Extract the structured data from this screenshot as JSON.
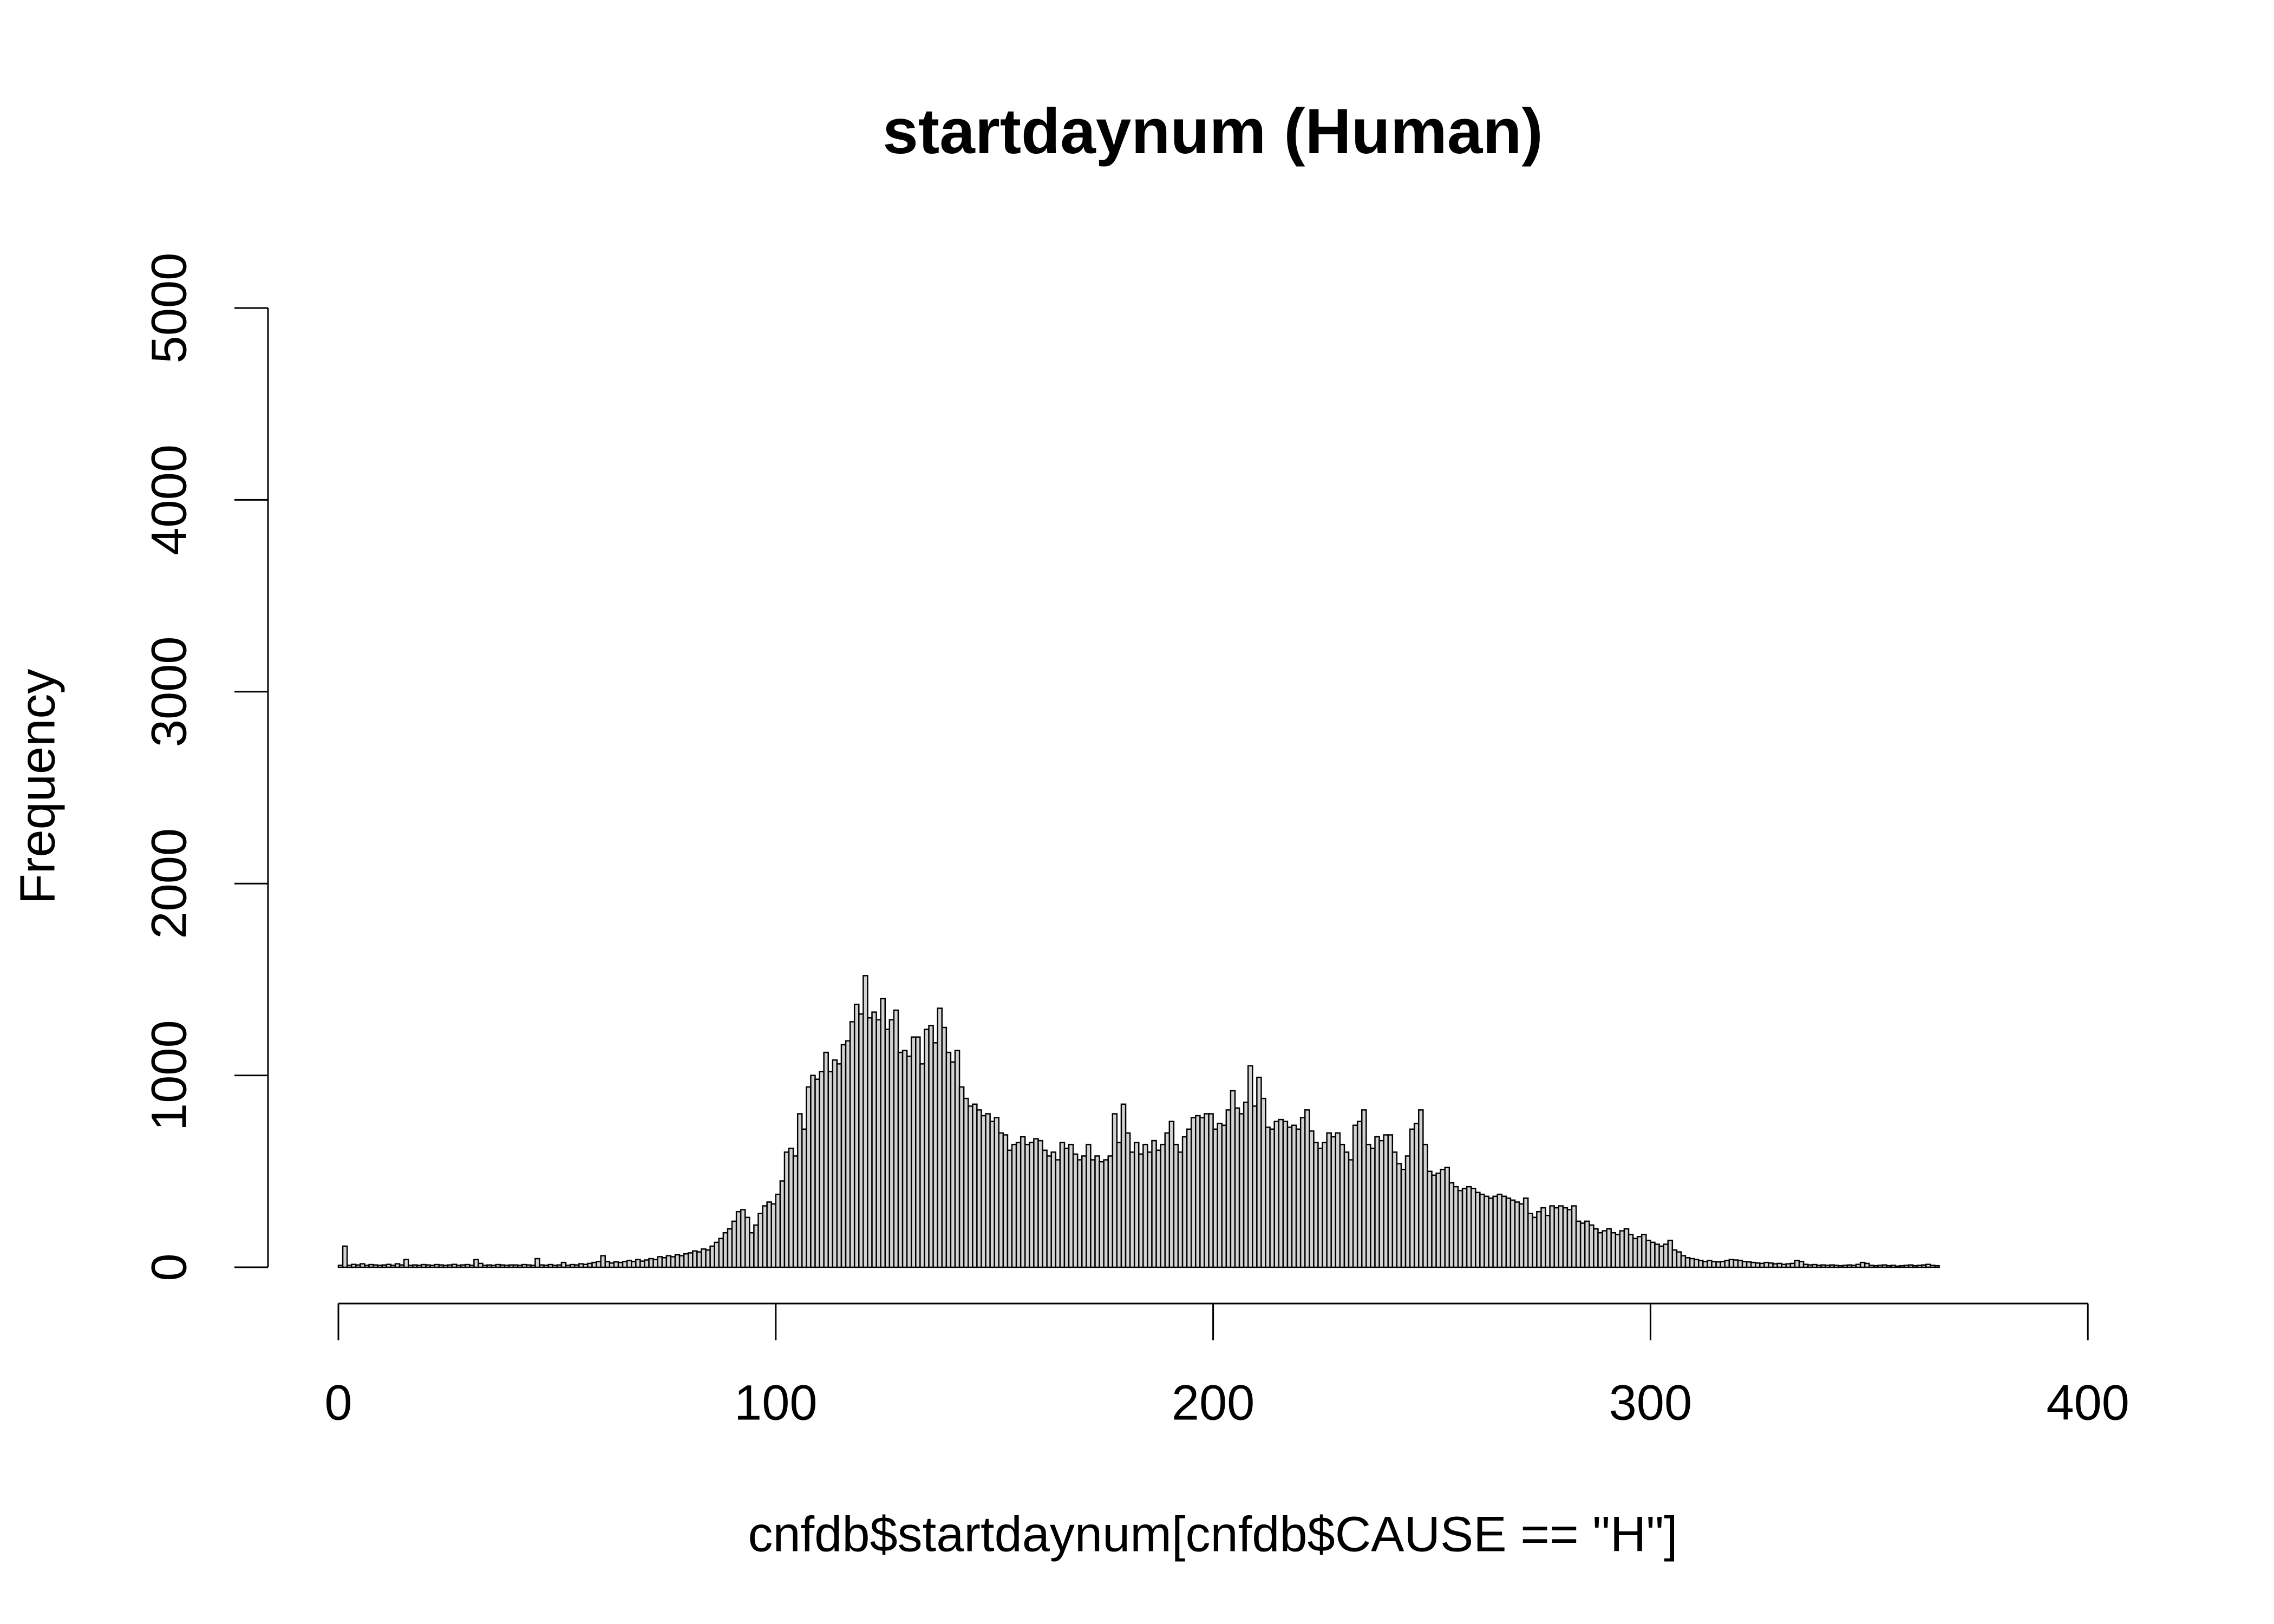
{
  "chart_data": {
    "type": "histogram",
    "title": "startdaynum (Human)",
    "x_label": "cnfdb$startdaynum[cnfdb$CAUSE == \"H\"]",
    "y_label": "Frequency",
    "color": "#d3d3d3",
    "edge_color": "#000000",
    "xlim": [
      0,
      400
    ],
    "xticks": [
      0,
      100,
      200,
      300,
      400
    ],
    "ylim": [
      0,
      5000
    ],
    "yticks": [
      0,
      1000,
      2000,
      3000,
      4000,
      5000
    ],
    "bins": [
      0,
      1,
      2,
      3,
      4,
      5,
      6,
      7,
      8,
      9,
      10,
      11,
      12,
      13,
      14,
      15,
      16,
      17,
      18,
      19,
      20,
      21,
      22,
      23,
      24,
      25,
      26,
      27,
      28,
      29,
      30,
      31,
      32,
      33,
      34,
      35,
      36,
      37,
      38,
      39,
      40,
      41,
      42,
      43,
      44,
      45,
      46,
      47,
      48,
      49,
      50,
      51,
      52,
      53,
      54,
      55,
      56,
      57,
      58,
      59,
      60,
      61,
      62,
      63,
      64,
      65,
      66,
      67,
      68,
      69,
      70,
      71,
      72,
      73,
      74,
      75,
      76,
      77,
      78,
      79,
      80,
      81,
      82,
      83,
      84,
      85,
      86,
      87,
      88,
      89,
      90,
      91,
      92,
      93,
      94,
      95,
      96,
      97,
      98,
      99,
      100,
      101,
      102,
      103,
      104,
      105,
      106,
      107,
      108,
      109,
      110,
      111,
      112,
      113,
      114,
      115,
      116,
      117,
      118,
      119,
      120,
      121,
      122,
      123,
      124,
      125,
      126,
      127,
      128,
      129,
      130,
      131,
      132,
      133,
      134,
      135,
      136,
      137,
      138,
      139,
      140,
      141,
      142,
      143,
      144,
      145,
      146,
      147,
      148,
      149,
      150,
      151,
      152,
      153,
      154,
      155,
      156,
      157,
      158,
      159,
      160,
      161,
      162,
      163,
      164,
      165,
      166,
      167,
      168,
      169,
      170,
      171,
      172,
      173,
      174,
      175,
      176,
      177,
      178,
      179,
      180,
      181,
      182,
      183,
      184,
      185,
      186,
      187,
      188,
      189,
      190,
      191,
      192,
      193,
      194,
      195,
      196,
      197,
      198,
      199,
      200,
      201,
      202,
      203,
      204,
      205,
      206,
      207,
      208,
      209,
      210,
      211,
      212,
      213,
      214,
      215,
      216,
      217,
      218,
      219,
      220,
      221,
      222,
      223,
      224,
      225,
      226,
      227,
      228,
      229,
      230,
      231,
      232,
      233,
      234,
      235,
      236,
      237,
      238,
      239,
      240,
      241,
      242,
      243,
      244,
      245,
      246,
      247,
      248,
      249,
      250,
      251,
      252,
      253,
      254,
      255,
      256,
      257,
      258,
      259,
      260,
      261,
      262,
      263,
      264,
      265,
      266,
      267,
      268,
      269,
      270,
      271,
      272,
      273,
      274,
      275,
      276,
      277,
      278,
      279,
      280,
      281,
      282,
      283,
      284,
      285,
      286,
      287,
      288,
      289,
      290,
      291,
      292,
      293,
      294,
      295,
      296,
      297,
      298,
      299,
      300,
      301,
      302,
      303,
      304,
      305,
      306,
      307,
      308,
      309,
      310,
      311,
      312,
      313,
      314,
      315,
      316,
      317,
      318,
      319,
      320,
      321,
      322,
      323,
      324,
      325,
      326,
      327,
      328,
      329,
      330,
      331,
      332,
      333,
      334,
      335,
      336,
      337,
      338,
      339,
      340,
      341,
      342,
      343,
      344,
      345,
      346,
      347,
      348,
      349,
      350,
      351,
      352,
      353,
      354,
      355,
      356,
      357,
      358,
      359,
      360,
      361,
      362,
      363,
      364,
      365,
      366
    ],
    "values": [
      10,
      110,
      10,
      15,
      12,
      18,
      10,
      14,
      12,
      10,
      12,
      15,
      10,
      18,
      12,
      40,
      10,
      12,
      10,
      14,
      12,
      10,
      14,
      12,
      10,
      12,
      15,
      10,
      12,
      14,
      10,
      40,
      20,
      10,
      12,
      10,
      14,
      12,
      10,
      12,
      12,
      10,
      14,
      12,
      10,
      45,
      12,
      10,
      14,
      10,
      12,
      25,
      10,
      14,
      12,
      18,
      15,
      20,
      25,
      30,
      60,
      30,
      22,
      28,
      25,
      30,
      35,
      30,
      40,
      32,
      38,
      45,
      40,
      55,
      50,
      60,
      55,
      65,
      60,
      70,
      75,
      85,
      80,
      95,
      90,
      110,
      130,
      150,
      180,
      200,
      240,
      290,
      300,
      260,
      180,
      220,
      280,
      320,
      340,
      330,
      380,
      450,
      600,
      620,
      580,
      800,
      720,
      940,
      1000,
      980,
      1020,
      1120,
      1020,
      1080,
      1060,
      1160,
      1180,
      1280,
      1370,
      1320,
      1520,
      1300,
      1330,
      1290,
      1400,
      1240,
      1290,
      1340,
      1120,
      1130,
      1100,
      1200,
      1200,
      1060,
      1240,
      1260,
      1170,
      1350,
      1250,
      1120,
      1070,
      1130,
      940,
      880,
      840,
      850,
      820,
      790,
      800,
      760,
      780,
      700,
      690,
      610,
      640,
      650,
      680,
      640,
      650,
      670,
      660,
      610,
      580,
      600,
      560,
      650,
      620,
      640,
      590,
      560,
      580,
      640,
      560,
      580,
      550,
      560,
      580,
      800,
      650,
      850,
      700,
      600,
      650,
      590,
      640,
      600,
      660,
      610,
      640,
      700,
      760,
      640,
      600,
      680,
      720,
      780,
      790,
      780,
      800,
      800,
      720,
      750,
      740,
      820,
      920,
      830,
      800,
      860,
      1050,
      840,
      990,
      880,
      730,
      720,
      760,
      770,
      760,
      730,
      740,
      720,
      780,
      820,
      710,
      650,
      620,
      650,
      700,
      680,
      700,
      640,
      600,
      560,
      740,
      760,
      820,
      640,
      620,
      680,
      660,
      690,
      690,
      600,
      540,
      510,
      580,
      720,
      750,
      820,
      640,
      500,
      480,
      490,
      510,
      520,
      440,
      420,
      400,
      410,
      420,
      410,
      390,
      380,
      370,
      360,
      370,
      380,
      370,
      360,
      350,
      340,
      330,
      360,
      280,
      260,
      290,
      310,
      270,
      320,
      310,
      320,
      310,
      300,
      320,
      240,
      230,
      240,
      220,
      200,
      180,
      190,
      200,
      180,
      170,
      190,
      200,
      170,
      150,
      160,
      170,
      140,
      130,
      120,
      110,
      120,
      140,
      90,
      80,
      60,
      50,
      45,
      40,
      35,
      30,
      35,
      30,
      28,
      30,
      35,
      40,
      38,
      35,
      30,
      28,
      25,
      22,
      20,
      25,
      22,
      18,
      20,
      15,
      18,
      20,
      35,
      30,
      15,
      12,
      14,
      10,
      12,
      10,
      12,
      10,
      8,
      10,
      12,
      10,
      15,
      25,
      20,
      10,
      8,
      10,
      12,
      8,
      10,
      6,
      8,
      10,
      12,
      8,
      10,
      12,
      15,
      10,
      8
    ]
  }
}
